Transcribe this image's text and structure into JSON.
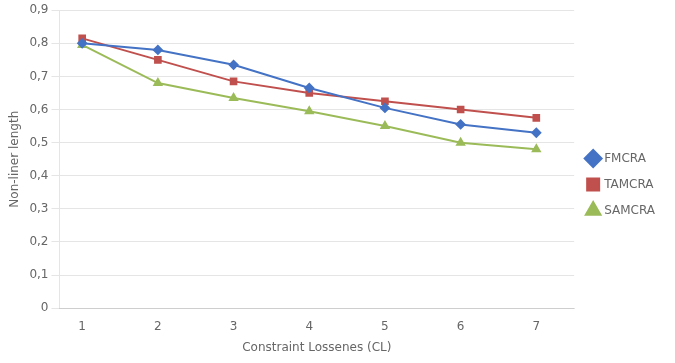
{
  "chart_data": {
    "type": "line",
    "x": [
      1,
      2,
      3,
      4,
      5,
      6,
      7
    ],
    "series": [
      {
        "name": "FMCRA",
        "color": "#4472C4",
        "marker": "diamond",
        "values": [
          0.8,
          0.78,
          0.735,
          0.665,
          0.605,
          0.555,
          0.53
        ]
      },
      {
        "name": "TAMCRA",
        "color": "#C0504D",
        "marker": "square",
        "values": [
          0.815,
          0.75,
          0.685,
          0.65,
          0.625,
          0.6,
          0.575
        ]
      },
      {
        "name": "SAMCRA",
        "color": "#9BBB59",
        "marker": "triangle",
        "values": [
          0.795,
          0.68,
          0.635,
          0.595,
          0.55,
          0.5,
          0.48
        ]
      }
    ],
    "x_label": "Constraint Lossenes (CL)",
    "y_label": "Non-liner length",
    "xlim": [
      0.7,
      7.5
    ],
    "xticks": [
      1,
      2,
      3,
      4,
      5,
      6,
      7
    ],
    "ylim": [
      0,
      0.9
    ],
    "yticks": [
      0,
      {
        "value": 0.1,
        "label": "0,1"
      },
      {
        "value": 0.2,
        "label": "0,2"
      },
      {
        "value": 0.3,
        "label": "0,3"
      },
      {
        "value": 0.4,
        "label": "0,4"
      },
      {
        "value": 0.5,
        "label": "0,5"
      },
      {
        "value": 0.6,
        "label": "0,6"
      },
      {
        "value": 0.7,
        "label": "0,7"
      },
      {
        "value": 0.8,
        "label": "0,8"
      },
      {
        "value": 0.9,
        "label": "0,9"
      }
    ],
    "grid": "y",
    "legend": "right"
  }
}
